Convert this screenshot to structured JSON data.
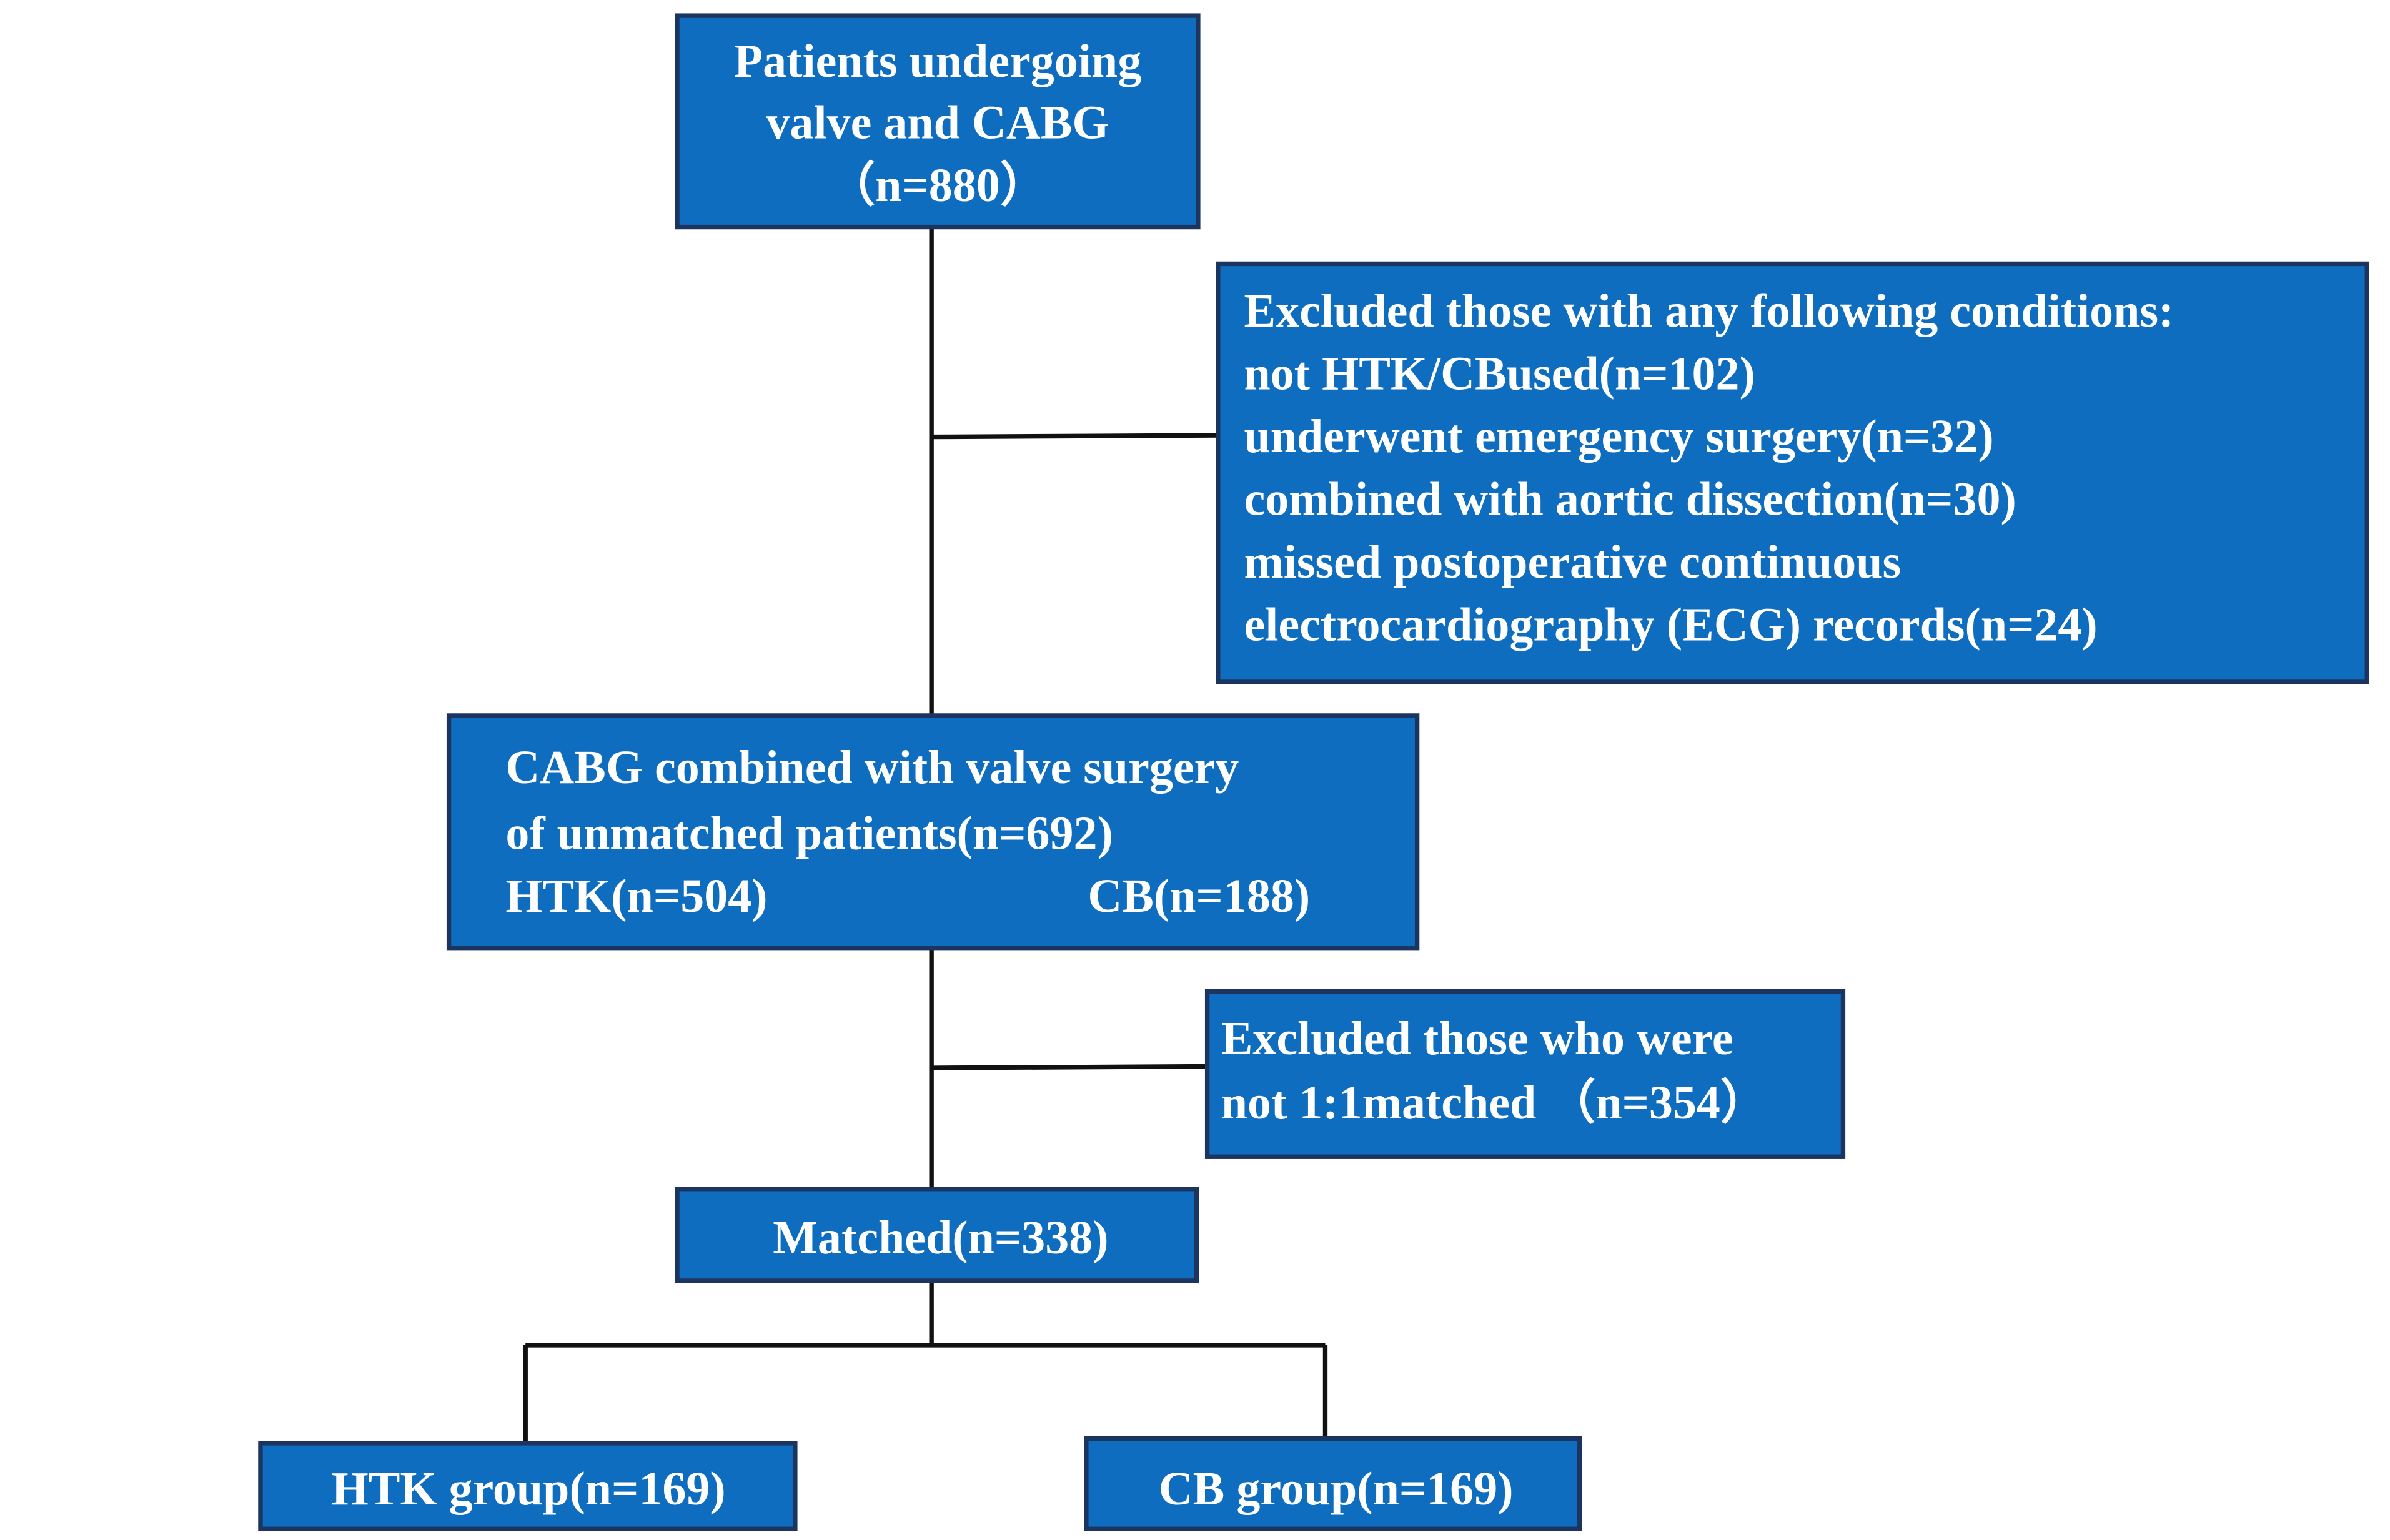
{
  "nodes": [
    {
      "lines": [
        "Patients undergoing",
        "valve and CABG",
        "（n=880）"
      ]
    },
    {
      "lines": [
        "Excluded those with any following conditions:",
        "not HTK/CBused(n=102)",
        "underwent emergency surgery(n=32)",
        "combined with aortic dissection(n=30)",
        "missed postoperative continuous",
        "electrocardiography (ECG) records(n=24)"
      ]
    },
    {
      "lines": [
        "CABG combined with valve surgery",
        "of unmatched patients(n=692)",
        "HTK(n=504)",
        "CB(n=188)"
      ]
    },
    {
      "lines": [
        "Excluded those who were",
        "not 1:1matched （n=354）"
      ]
    },
    {
      "lines": [
        "Matched(n=338)"
      ]
    },
    {
      "lines": [
        "HTK group(n=169)"
      ]
    },
    {
      "lines": [
        "CB group(n=169)"
      ]
    }
  ]
}
